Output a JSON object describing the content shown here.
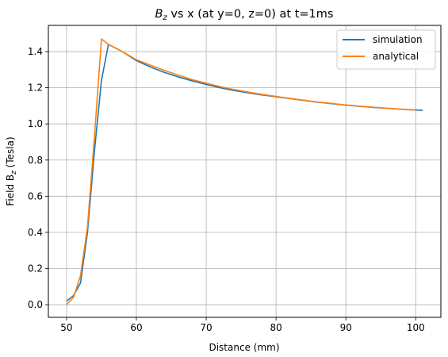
{
  "chart_data": {
    "type": "line",
    "title_base": "B",
    "title_sub": "z",
    "title_rest": " vs x (at y=0, z=0) at t=1ms",
    "xlabel": "Distance (mm)",
    "ylabel_base": "Field B",
    "ylabel_sub": "z",
    "ylabel_rest": " (Tesla)",
    "xlim": [
      47.4,
      103.6
    ],
    "ylim": [
      -0.07,
      1.545
    ],
    "xticks": [
      50,
      60,
      70,
      80,
      90,
      100
    ],
    "yticks": [
      0.0,
      0.2,
      0.4,
      0.6,
      0.8,
      1.0,
      1.2,
      1.4
    ],
    "grid": true,
    "legend_position": "top-right",
    "series": [
      {
        "name": "simulation",
        "color": "#1f77b4",
        "x": [
          50,
          51,
          52,
          53,
          54,
          55,
          56,
          58,
          60,
          62,
          64,
          66,
          68,
          70,
          72,
          74,
          76,
          78,
          80,
          82,
          84,
          86,
          88,
          90,
          92,
          94,
          96,
          98,
          100,
          101
        ],
        "y": [
          0.02,
          0.05,
          0.12,
          0.4,
          0.85,
          1.24,
          1.44,
          1.4,
          1.35,
          1.315,
          1.285,
          1.26,
          1.238,
          1.218,
          1.2,
          1.185,
          1.172,
          1.16,
          1.15,
          1.14,
          1.13,
          1.12,
          1.112,
          1.104,
          1.097,
          1.091,
          1.086,
          1.081,
          1.077,
          1.075
        ]
      },
      {
        "name": "analytical",
        "color": "#ff7f0e",
        "x": [
          50,
          51,
          52,
          53,
          54,
          55,
          56,
          58,
          60,
          62,
          64,
          66,
          68,
          70,
          72,
          74,
          76,
          78,
          80,
          82,
          84,
          86,
          88,
          90,
          92,
          94,
          96,
          98,
          100
        ],
        "y": [
          0.0,
          0.04,
          0.16,
          0.43,
          0.93,
          1.47,
          1.44,
          1.4,
          1.355,
          1.325,
          1.296,
          1.27,
          1.245,
          1.225,
          1.206,
          1.19,
          1.176,
          1.163,
          1.152,
          1.141,
          1.131,
          1.121,
          1.113,
          1.105,
          1.098,
          1.092,
          1.086,
          1.081,
          1.076
        ]
      }
    ]
  }
}
